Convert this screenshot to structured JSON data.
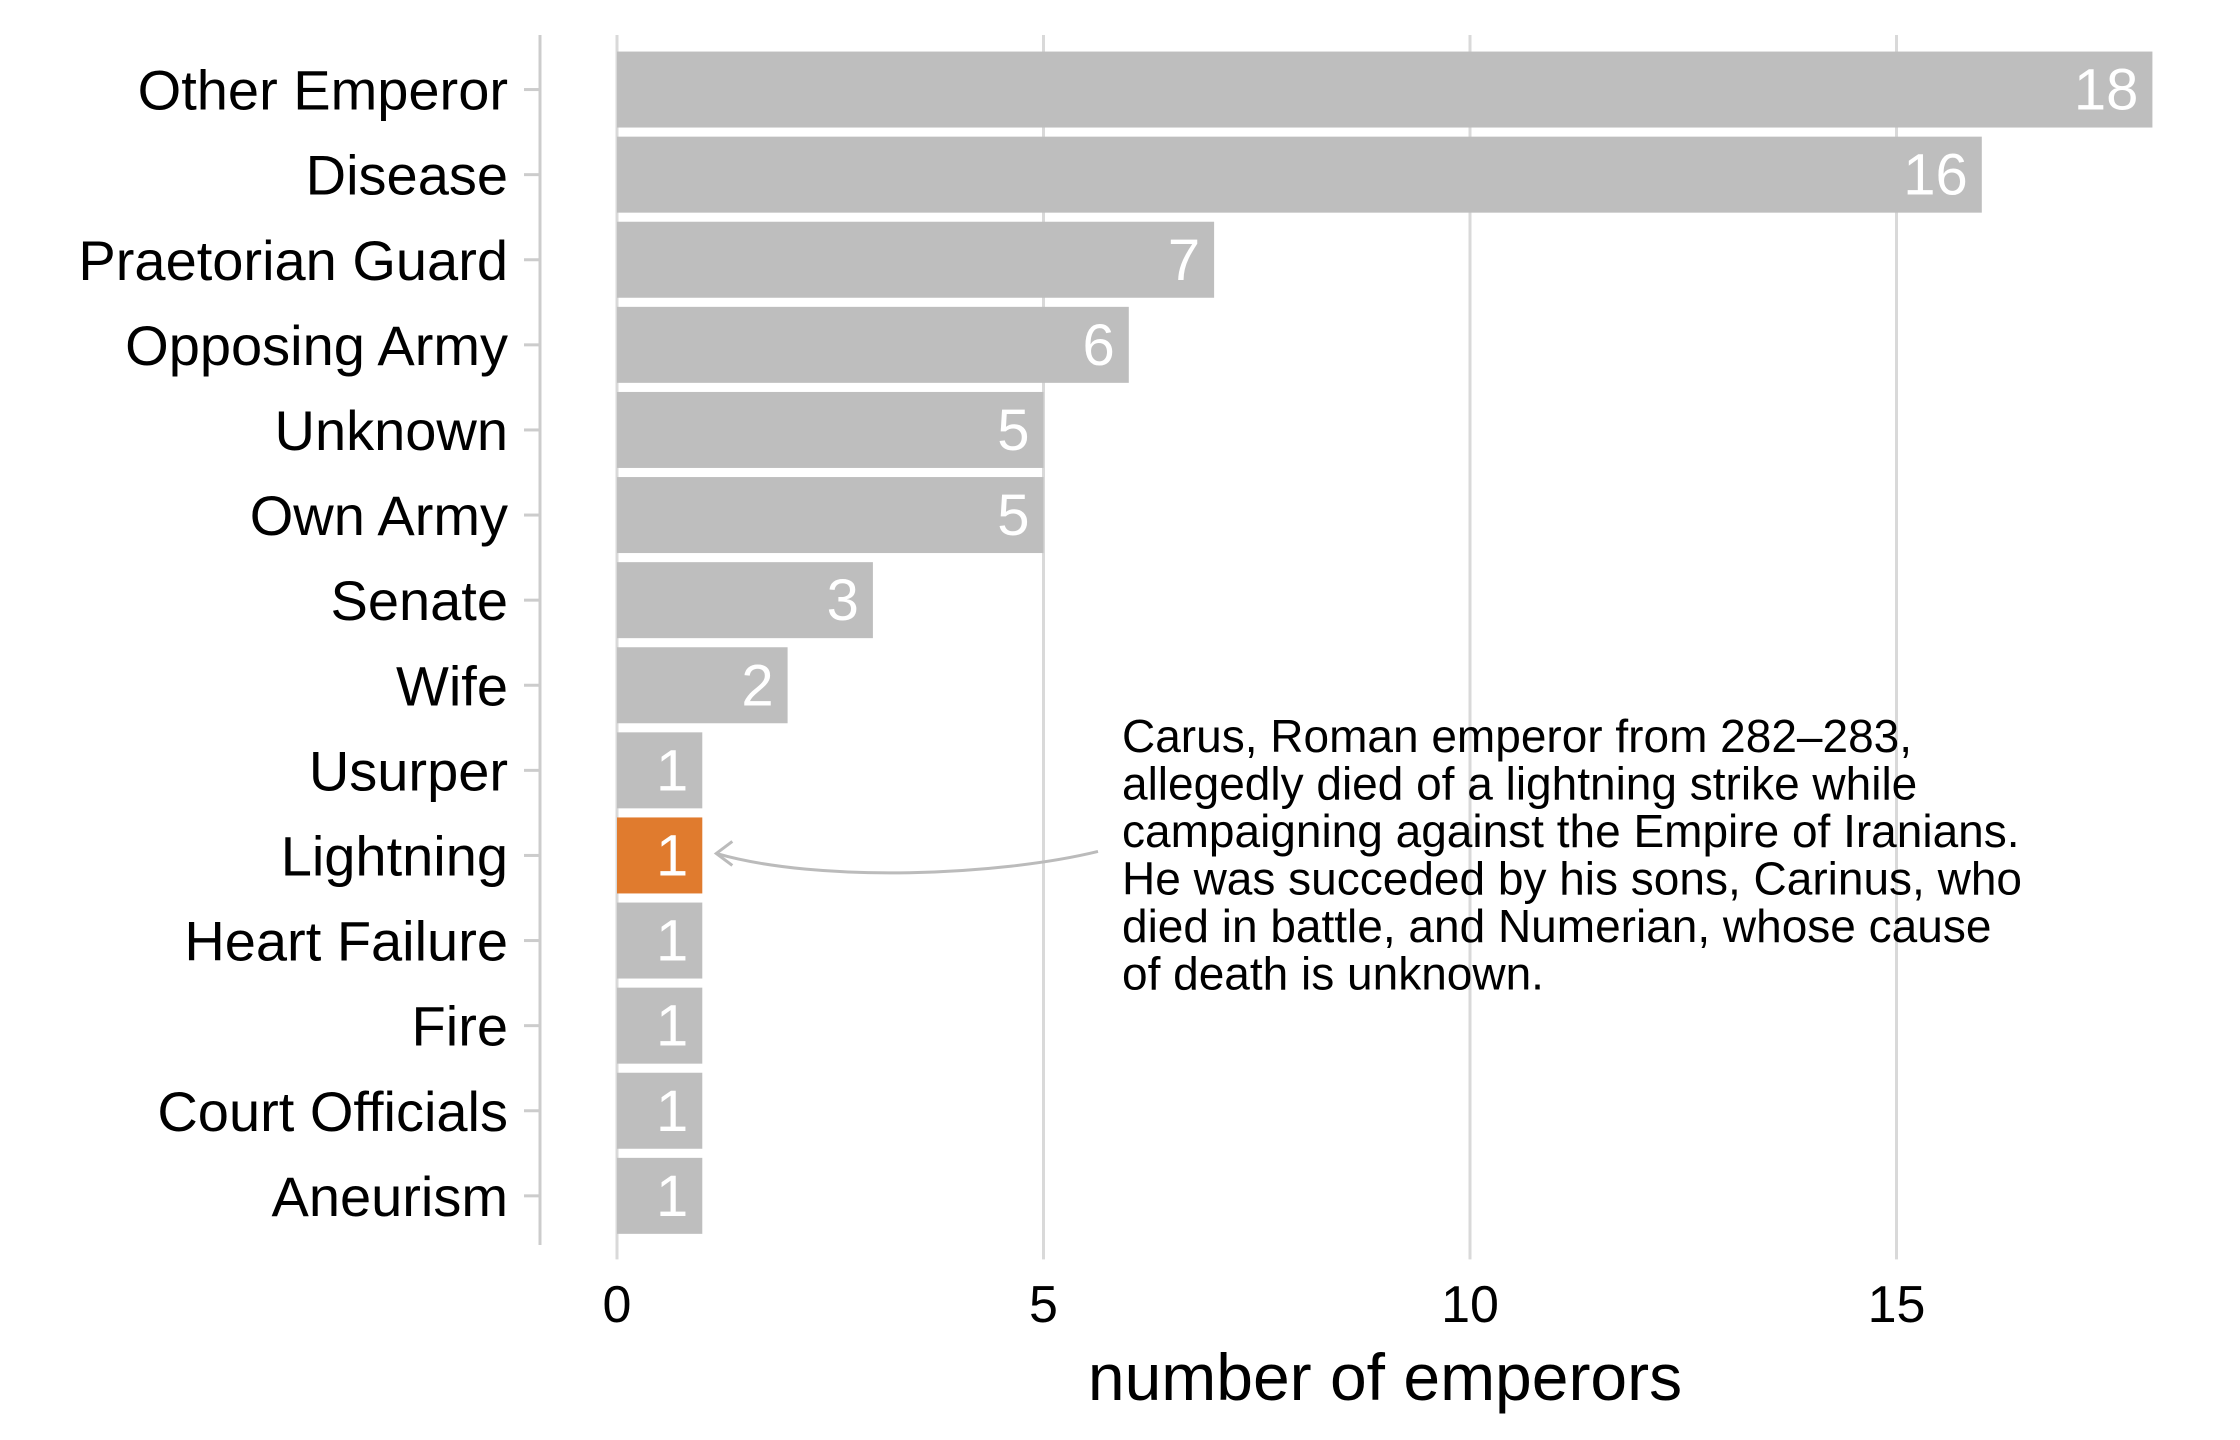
{
  "chart_data": {
    "type": "bar",
    "orientation": "horizontal",
    "categories": [
      "Other Emperor",
      "Disease",
      "Praetorian Guard",
      "Opposing Army",
      "Unknown",
      "Own Army",
      "Senate",
      "Wife",
      "Usurper",
      "Lightning",
      "Heart Failure",
      "Fire",
      "Court Officials",
      "Aneurism"
    ],
    "values": [
      18,
      16,
      7,
      6,
      5,
      5,
      3,
      2,
      1,
      1,
      1,
      1,
      1,
      1
    ],
    "highlight": "Lightning",
    "xlabel": "number of emperors",
    "xlim": [
      0,
      18.5
    ],
    "xticks": [
      0,
      5,
      10,
      15
    ],
    "grid": "vertical",
    "colors": {
      "bar": "#bebebe",
      "highlight": "#e07b2e",
      "grid": "#d9d9d9",
      "axis": "#cccccc",
      "arrow": "#bbbbbb"
    },
    "annotation": {
      "target": "Lightning",
      "lines": [
        "Carus, Roman emperor from 282–283,",
        "allegedly died of a lightning strike while",
        "campaigning against the Empire of Iranians.",
        "He was succeded by his sons, Carinus, who",
        "died in battle, and Numerian, whose cause",
        "of death is unknown."
      ]
    }
  }
}
